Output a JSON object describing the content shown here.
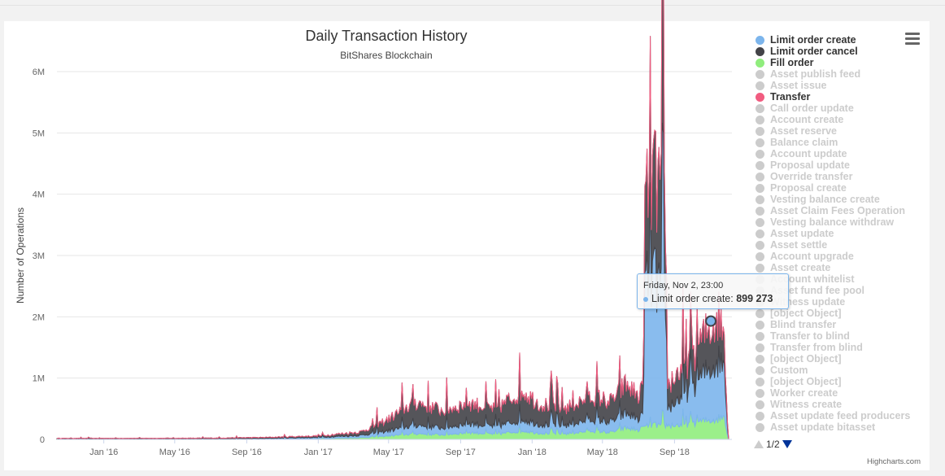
{
  "colors": {
    "limit_order_create": "#7cb5ec",
    "limit_order_cancel": "#434348",
    "fill_order": "#90ed7d",
    "transfer": "#f15c80",
    "inactive": "#cccccc"
  },
  "legend": {
    "items": [
      {
        "label": "Limit order create",
        "active": true,
        "color": "#7cb5ec"
      },
      {
        "label": "Limit order cancel",
        "active": true,
        "color": "#434348"
      },
      {
        "label": "Fill order",
        "active": true,
        "color": "#90ed7d"
      },
      {
        "label": "Asset publish feed",
        "active": false
      },
      {
        "label": "Asset issue",
        "active": false
      },
      {
        "label": "Transfer",
        "active": true,
        "color": "#f15c80"
      },
      {
        "label": "Call order update",
        "active": false
      },
      {
        "label": "Account create",
        "active": false
      },
      {
        "label": "Asset reserve",
        "active": false
      },
      {
        "label": "Balance claim",
        "active": false
      },
      {
        "label": "Account update",
        "active": false
      },
      {
        "label": "Proposal update",
        "active": false
      },
      {
        "label": "Override transfer",
        "active": false
      },
      {
        "label": "Proposal create",
        "active": false
      },
      {
        "label": "Vesting balance create",
        "active": false
      },
      {
        "label": "Asset Claim Fees Operation",
        "active": false
      },
      {
        "label": "Vesting balance withdraw",
        "active": false
      },
      {
        "label": "Asset update",
        "active": false
      },
      {
        "label": "Asset settle",
        "active": false
      },
      {
        "label": "Account upgrade",
        "active": false
      },
      {
        "label": "Asset create",
        "active": false
      },
      {
        "label": "Account whitelist",
        "active": false
      },
      {
        "label": "Asset fund fee pool",
        "active": false
      },
      {
        "label": "Witness update",
        "active": false
      },
      {
        "label": "[object Object]",
        "active": false
      },
      {
        "label": "Blind transfer",
        "active": false
      },
      {
        "label": "Transfer to blind",
        "active": false
      },
      {
        "label": "Transfer from blind",
        "active": false
      },
      {
        "label": "[object Object]",
        "active": false
      },
      {
        "label": "Custom",
        "active": false
      },
      {
        "label": "[object Object]",
        "active": false
      },
      {
        "label": "Worker create",
        "active": false
      },
      {
        "label": "Witness create",
        "active": false
      },
      {
        "label": "Asset update feed producers",
        "active": false
      },
      {
        "label": "Asset update bitasset",
        "active": false
      }
    ],
    "page": "1/2"
  },
  "tooltip": {
    "date": "Friday, Nov 2, 23:00",
    "series": "Limit order create",
    "value": "899 273",
    "separator": ": "
  },
  "credits": "Highcharts.com",
  "chart_data": {
    "type": "area",
    "title": "Daily Transaction History",
    "subtitle": "BitShares Blockchain",
    "ylabel": "Number of Operations",
    "xlabel": "",
    "ylim": [
      0,
      6000000
    ],
    "yticks": [
      0,
      1000000,
      2000000,
      3000000,
      4000000,
      5000000,
      6000000
    ],
    "ytick_labels": [
      "0",
      "1M",
      "2M",
      "3M",
      "4M",
      "5M",
      "6M"
    ],
    "xticks": [
      "Jan '16",
      "May '16",
      "Sep '16",
      "Jan '17",
      "May '17",
      "Sep '17",
      "Jan '18",
      "May '18",
      "Sep '18"
    ],
    "xlim": [
      "2015-10-13",
      "2018-12-08"
    ],
    "stacking": "normal",
    "grid": true,
    "legend_position": "right",
    "highlight_point": {
      "date": "2018-11-02",
      "value": 1930000
    },
    "series": [
      {
        "name": "Fill order",
        "color": "#90ed7d",
        "points": [
          [
            "2015-10-13",
            5000
          ],
          [
            "2016-06-01",
            5000
          ],
          [
            "2016-10-01",
            8000
          ],
          [
            "2017-01-01",
            15000
          ],
          [
            "2017-03-15",
            30000
          ],
          [
            "2017-05-01",
            60000
          ],
          [
            "2017-06-15",
            100000
          ],
          [
            "2017-08-01",
            80000
          ],
          [
            "2017-09-15",
            120000
          ],
          [
            "2017-11-01",
            90000
          ],
          [
            "2017-12-15",
            150000
          ],
          [
            "2018-01-15",
            110000
          ],
          [
            "2018-03-01",
            100000
          ],
          [
            "2018-04-15",
            150000
          ],
          [
            "2018-05-15",
            120000
          ],
          [
            "2018-06-10",
            200000
          ],
          [
            "2018-07-01",
            160000
          ],
          [
            "2018-07-20",
            250000
          ],
          [
            "2018-08-20",
            240000
          ],
          [
            "2018-09-15",
            250000
          ],
          [
            "2018-10-10",
            300000
          ],
          [
            "2018-11-01",
            330000
          ],
          [
            "2018-11-15",
            360000
          ],
          [
            "2018-11-25",
            400000
          ],
          [
            "2018-12-01",
            50000
          ]
        ]
      },
      {
        "name": "Limit order create",
        "color": "#7cb5ec",
        "points": [
          [
            "2015-10-13",
            5000
          ],
          [
            "2016-06-01",
            5000
          ],
          [
            "2016-10-01",
            10000
          ],
          [
            "2017-01-01",
            20000
          ],
          [
            "2017-03-15",
            40000
          ],
          [
            "2017-05-01",
            90000
          ],
          [
            "2017-06-15",
            150000
          ],
          [
            "2017-08-01",
            120000
          ],
          [
            "2017-09-15",
            160000
          ],
          [
            "2017-11-01",
            130000
          ],
          [
            "2017-12-15",
            200000
          ],
          [
            "2018-01-15",
            150000
          ],
          [
            "2018-03-01",
            150000
          ],
          [
            "2018-04-15",
            200000
          ],
          [
            "2018-05-15",
            180000
          ],
          [
            "2018-06-10",
            250000
          ],
          [
            "2018-07-01",
            200000
          ],
          [
            "2018-07-10",
            200000
          ],
          [
            "2018-07-12",
            2500000
          ],
          [
            "2018-07-20",
            2600000
          ],
          [
            "2018-08-10",
            2400000
          ],
          [
            "2018-08-17",
            2300000
          ],
          [
            "2018-08-20",
            300000
          ],
          [
            "2018-09-15",
            500000
          ],
          [
            "2018-10-10",
            700000
          ],
          [
            "2018-11-01",
            900000
          ],
          [
            "2018-11-15",
            1000000
          ],
          [
            "2018-11-25",
            900000
          ],
          [
            "2018-12-01",
            100000
          ]
        ]
      },
      {
        "name": "Limit order cancel",
        "color": "#434348",
        "points": [
          [
            "2015-10-13",
            8000
          ],
          [
            "2016-06-01",
            10000
          ],
          [
            "2016-10-01",
            15000
          ],
          [
            "2017-01-01",
            25000
          ],
          [
            "2017-03-15",
            60000
          ],
          [
            "2017-05-01",
            200000
          ],
          [
            "2017-06-15",
            400000
          ],
          [
            "2017-08-01",
            300000
          ],
          [
            "2017-09-15",
            350000
          ],
          [
            "2017-11-01",
            300000
          ],
          [
            "2017-12-15",
            500000
          ],
          [
            "2018-01-15",
            350000
          ],
          [
            "2018-03-01",
            300000
          ],
          [
            "2018-04-15",
            400000
          ],
          [
            "2018-05-15",
            350000
          ],
          [
            "2018-06-10",
            500000
          ],
          [
            "2018-07-01",
            400000
          ],
          [
            "2018-07-10",
            450000
          ],
          [
            "2018-07-12",
            1400000
          ],
          [
            "2018-07-20",
            1600000
          ],
          [
            "2018-08-10",
            1800000
          ],
          [
            "2018-08-17",
            1500000
          ],
          [
            "2018-08-20",
            400000
          ],
          [
            "2018-09-15",
            500000
          ],
          [
            "2018-10-10",
            600000
          ],
          [
            "2018-11-01",
            700000
          ],
          [
            "2018-11-15",
            800000
          ],
          [
            "2018-11-25",
            500000
          ],
          [
            "2018-12-01",
            100000
          ]
        ]
      },
      {
        "name": "Transfer",
        "color": "#f15c80",
        "points": [
          [
            "2015-10-13",
            0
          ],
          [
            "2018-12-08",
            0
          ]
        ]
      }
    ]
  }
}
